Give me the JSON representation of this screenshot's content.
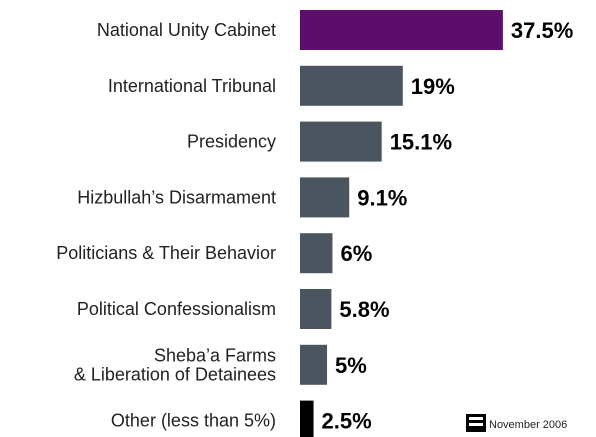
{
  "chart_data": {
    "type": "bar",
    "orientation": "horizontal",
    "categories": [
      "National Unity Cabinet",
      "International Tribunal",
      "Presidency",
      "Hizbullah’s Disarmament",
      "Politicians & Their Behavior",
      "Political Confessionalism",
      "Sheba’a Farms\n& Liberation of Detainees",
      "Other (less than 5%)"
    ],
    "values": [
      37.5,
      19,
      15.1,
      9.1,
      6,
      5.8,
      5,
      2.5
    ],
    "value_labels": [
      "37.5%",
      "19%",
      "15.1%",
      "9.1%",
      "6%",
      "5.8%",
      "5%",
      "2.5%"
    ],
    "colors": [
      "#5b0f6b",
      "#4a5560",
      "#4a5560",
      "#4a5560",
      "#4a5560",
      "#4a5560",
      "#4a5560",
      "#000000"
    ],
    "note": "November 2006"
  }
}
